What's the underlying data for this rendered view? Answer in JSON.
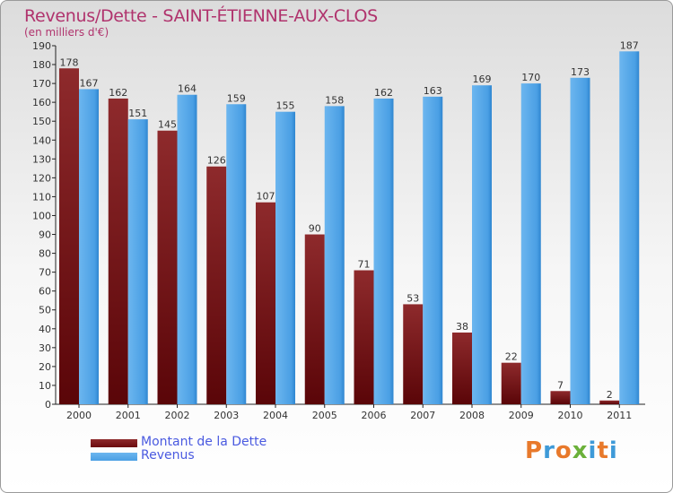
{
  "header": {
    "title": "Revenus/Dette - SAINT-ÉTIENNE-AUX-CLOS",
    "subtitle": "(en milliers d'€)"
  },
  "colors": {
    "title": "#b0336d",
    "debt": "#7a1a1c",
    "revenue": "#4a9fe4",
    "legend_text": "#4a5ae0"
  },
  "legend": [
    {
      "label": "Montant de la Dette",
      "color": "#6b0a0e"
    },
    {
      "label": "Revenus",
      "color": "#4a9fe4"
    }
  ],
  "logo": {
    "text": "Proxiti"
  },
  "chart_data": {
    "type": "bar",
    "title": "Revenus/Dette - SAINT-ÉTIENNE-AUX-CLOS",
    "subtitle": "(en milliers d'€)",
    "xlabel": "",
    "ylabel": "",
    "categories": [
      "2000",
      "2001",
      "2002",
      "2003",
      "2004",
      "2005",
      "2006",
      "2007",
      "2008",
      "2009",
      "2010",
      "2011"
    ],
    "series": [
      {
        "name": "Montant de la Dette",
        "values": [
          178,
          162,
          145,
          126,
          107,
          90,
          71,
          53,
          38,
          22,
          7,
          2
        ]
      },
      {
        "name": "Revenus",
        "values": [
          167,
          151,
          164,
          159,
          155,
          158,
          162,
          163,
          169,
          170,
          173,
          187
        ]
      }
    ],
    "ylim": [
      0,
      190
    ],
    "ytick_step": 10,
    "grid": false,
    "legend_position": "bottom-left"
  }
}
